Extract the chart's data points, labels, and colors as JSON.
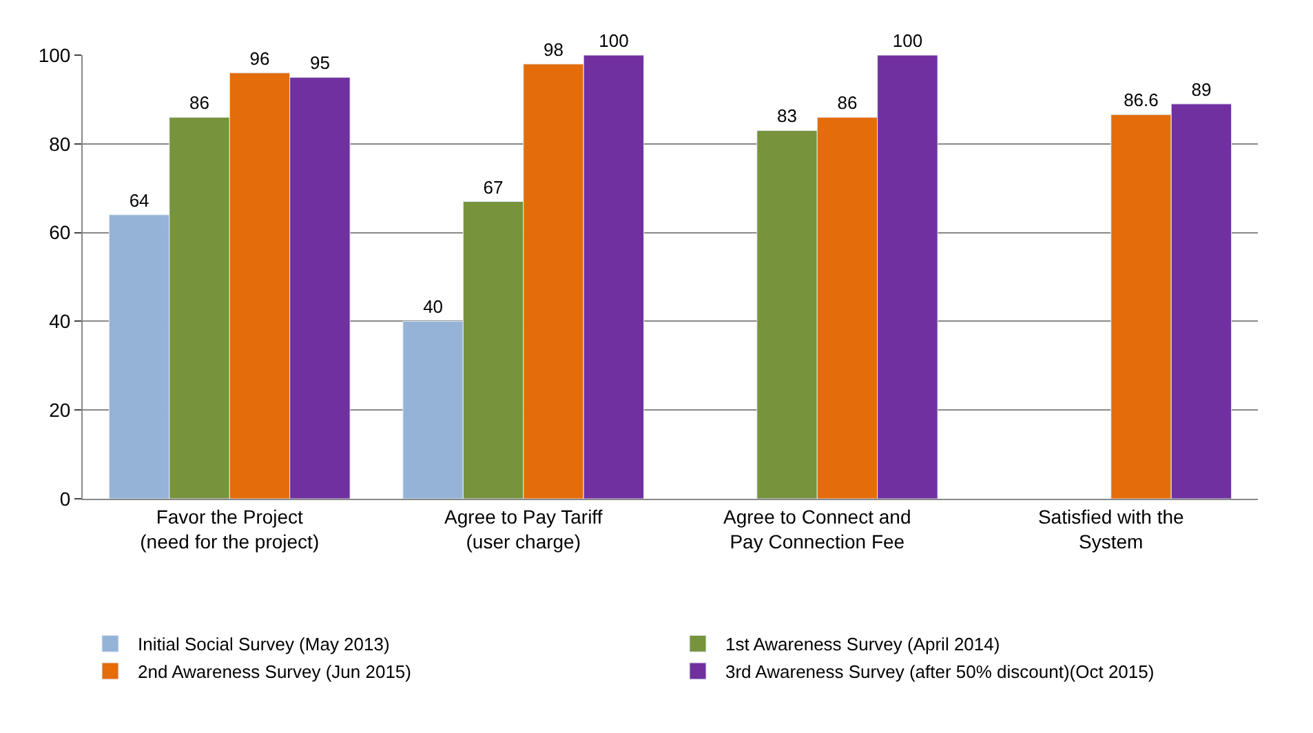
{
  "chart_data": {
    "type": "bar",
    "categories": [
      "Favor the Project\n(need for the project)",
      "Agree to Pay Tariff\n(user charge)",
      "Agree to Connect and\nPay Connection Fee",
      "Satisfied with the\nSystem"
    ],
    "series": [
      {
        "name": "Initial Social Survey (May 2013)",
        "color": "#95b3d7",
        "values": [
          64,
          40,
          null,
          null
        ]
      },
      {
        "name": "1st Awareness Survey (April 2014)",
        "color": "#77933c",
        "values": [
          86,
          67,
          83,
          null
        ]
      },
      {
        "name": "2nd Awareness Survey (Jun 2015)",
        "color": "#e46c0a",
        "values": [
          96,
          98,
          86,
          86.6
        ]
      },
      {
        "name": "3rd Awareness Survey (after 50% discount)(Oct 2015)",
        "color": "#7030a0",
        "values": [
          95,
          100,
          100,
          89
        ]
      }
    ],
    "ylim": [
      0,
      100
    ],
    "yticks": [
      0,
      20,
      40,
      60,
      80,
      100
    ],
    "grid": "y",
    "legend": "bottom",
    "data_labels": true
  }
}
